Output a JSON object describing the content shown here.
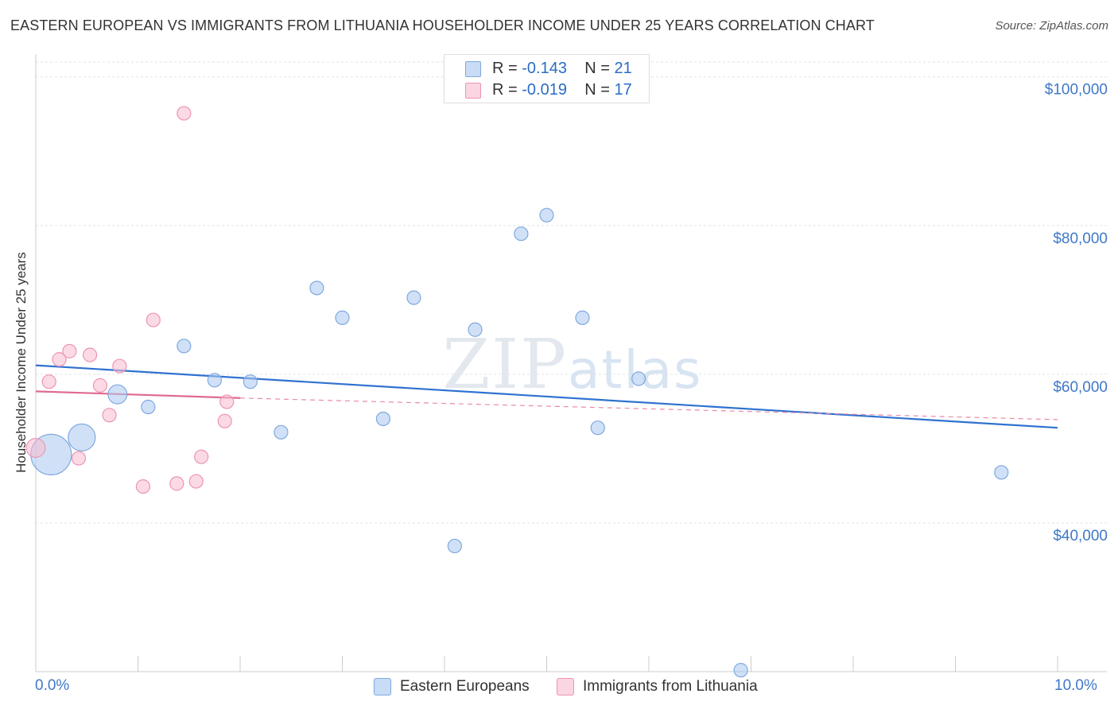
{
  "title": "EASTERN EUROPEAN VS IMMIGRANTS FROM LITHUANIA HOUSEHOLDER INCOME UNDER 25 YEARS CORRELATION CHART",
  "source": "Source: ZipAtlas.com",
  "watermark": "ZIPatlas",
  "legend_top": {
    "rows": [
      {
        "r_label": "R =",
        "r_value": "-0.143",
        "n_label": "N =",
        "n_value": "21",
        "color": "#aac8f0"
      },
      {
        "r_label": "R =",
        "r_value": "-0.019",
        "n_label": "N =",
        "n_value": "17",
        "color": "#f7bcd0"
      }
    ]
  },
  "legend_bottom": [
    {
      "label": "Eastern Europeans",
      "color": "#aac8f0"
    },
    {
      "label": "Immigrants from Lithuania",
      "color": "#f7bcd0"
    }
  ],
  "chart_data": {
    "type": "scatter",
    "title": "EASTERN EUROPEAN VS IMMIGRANTS FROM LITHUANIA HOUSEHOLDER INCOME UNDER 25 YEARS CORRELATION CHART",
    "xlabel": "",
    "ylabel": "Householder Income Under 25 years",
    "xlim": [
      0,
      10
    ],
    "ylim": [
      20000,
      102000
    ],
    "x_tick_labels": [
      "0.0%",
      "10.0%"
    ],
    "y_ticks": [
      40000,
      60000,
      80000,
      100000
    ],
    "y_tick_labels": [
      "$40,000",
      "$60,000",
      "$80,000",
      "$100,000"
    ],
    "grid": true,
    "series": [
      {
        "name": "Eastern Europeans",
        "color": "#aac8f0",
        "stroke": "#7fa9de",
        "trend": {
          "x": [
            0,
            10
          ],
          "y": [
            61200,
            52800
          ],
          "color": "#2f72d0"
        },
        "points": [
          {
            "x": 0.15,
            "y": 49200,
            "s": 3
          },
          {
            "x": 0.45,
            "y": 51500,
            "s": 2
          },
          {
            "x": 0.8,
            "y": 57300,
            "s": 1.4
          },
          {
            "x": 1.1,
            "y": 55600,
            "s": 1
          },
          {
            "x": 1.45,
            "y": 63800,
            "s": 1
          },
          {
            "x": 1.75,
            "y": 59200,
            "s": 1
          },
          {
            "x": 2.1,
            "y": 59000,
            "s": 1
          },
          {
            "x": 2.4,
            "y": 52200,
            "s": 1
          },
          {
            "x": 2.75,
            "y": 71600,
            "s": 1
          },
          {
            "x": 3.0,
            "y": 67600,
            "s": 1
          },
          {
            "x": 3.4,
            "y": 54000,
            "s": 1
          },
          {
            "x": 3.7,
            "y": 70300,
            "s": 1
          },
          {
            "x": 4.1,
            "y": 36900,
            "s": 1
          },
          {
            "x": 4.3,
            "y": 66000,
            "s": 1
          },
          {
            "x": 4.75,
            "y": 78900,
            "s": 1
          },
          {
            "x": 5.0,
            "y": 81400,
            "s": 1
          },
          {
            "x": 5.35,
            "y": 67600,
            "s": 1
          },
          {
            "x": 5.5,
            "y": 52800,
            "s": 1
          },
          {
            "x": 5.9,
            "y": 59400,
            "s": 1
          },
          {
            "x": 6.9,
            "y": 20200,
            "s": 1
          },
          {
            "x": 9.45,
            "y": 46800,
            "s": 1
          }
        ]
      },
      {
        "name": "Immigrants from Lithuania",
        "color": "#f7bcd0",
        "stroke": "#ec95b2",
        "trend": {
          "x": [
            0,
            2.0
          ],
          "y": [
            57700,
            56800
          ],
          "color": "#e06a92"
        },
        "trend_ext": {
          "x": [
            2.0,
            10
          ],
          "y": [
            56800,
            53900
          ],
          "color": "#e88aaa"
        },
        "points": [
          {
            "x": 0.0,
            "y": 50100,
            "s": 1.4
          },
          {
            "x": 0.13,
            "y": 59000,
            "s": 1
          },
          {
            "x": 0.23,
            "y": 62000,
            "s": 1
          },
          {
            "x": 0.33,
            "y": 63100,
            "s": 1
          },
          {
            "x": 0.42,
            "y": 48700,
            "s": 1
          },
          {
            "x": 0.53,
            "y": 62600,
            "s": 1
          },
          {
            "x": 0.63,
            "y": 58500,
            "s": 1
          },
          {
            "x": 0.72,
            "y": 54500,
            "s": 1
          },
          {
            "x": 0.82,
            "y": 61100,
            "s": 1
          },
          {
            "x": 1.05,
            "y": 44900,
            "s": 1
          },
          {
            "x": 1.15,
            "y": 67300,
            "s": 1
          },
          {
            "x": 1.38,
            "y": 45300,
            "s": 1
          },
          {
            "x": 1.45,
            "y": 95100,
            "s": 1
          },
          {
            "x": 1.57,
            "y": 45600,
            "s": 1
          },
          {
            "x": 1.62,
            "y": 48900,
            "s": 1
          },
          {
            "x": 1.85,
            "y": 53700,
            "s": 1
          },
          {
            "x": 1.87,
            "y": 56300,
            "s": 1
          }
        ]
      }
    ]
  }
}
